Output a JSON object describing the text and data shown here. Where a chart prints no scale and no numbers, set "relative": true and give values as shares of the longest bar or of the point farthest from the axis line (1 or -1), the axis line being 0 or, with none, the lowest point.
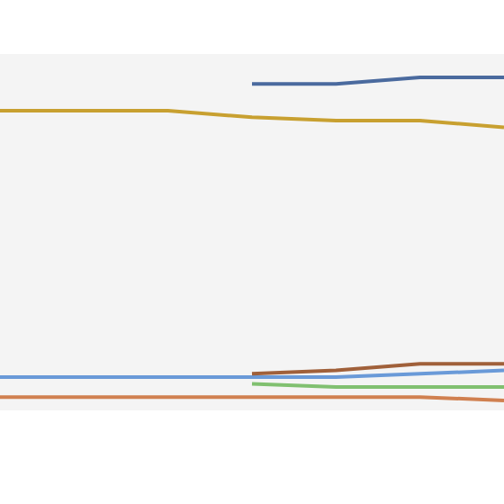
{
  "chart_data": {
    "type": "line",
    "relative": true,
    "categories": [
      null,
      null,
      null,
      null,
      null,
      null,
      null
    ],
    "legend": false,
    "grid": false,
    "series": [
      {
        "color": "#4a6a9e",
        "values": [
          null,
          null,
          null,
          0.98,
          0.98,
          1,
          1
        ]
      },
      {
        "color": "#c8a030",
        "values": [
          0.9,
          0.9,
          0.9,
          0.88,
          0.87,
          0.87,
          0.85
        ]
      },
      {
        "color": "#6a9ad8",
        "values": [
          0.1,
          0.1,
          0.1,
          0.1,
          0.1,
          0.11,
          0.12
        ]
      },
      {
        "color": "#d08050",
        "values": [
          0.04,
          0.04,
          0.04,
          0.04,
          0.04,
          0.04,
          0.03
        ]
      },
      {
        "color": "#a0603a",
        "values": [
          null,
          null,
          null,
          0.11,
          0.12,
          0.14,
          0.14
        ]
      },
      {
        "color": "#80c070",
        "values": [
          null,
          null,
          null,
          0.08,
          0.07,
          0.07,
          0.07
        ]
      }
    ]
  }
}
